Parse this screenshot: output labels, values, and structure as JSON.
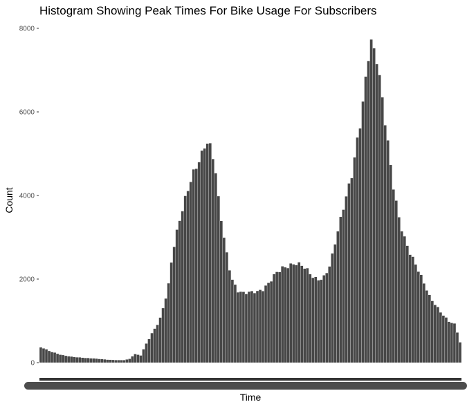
{
  "chart_data": {
    "type": "bar",
    "title": "Histogram Showing Peak Times For Bike Usage For Subscribers",
    "xlabel": "Time",
    "ylabel": "Count",
    "ylim": [
      0,
      8000
    ],
    "y_ticks": [
      0,
      2000,
      4000,
      6000,
      8000
    ],
    "y_tick_labels": [
      "0",
      "2000",
      "4000",
      "6000",
      "8000"
    ],
    "grid": false,
    "legend": "none",
    "x_tick_labels_legible": false,
    "bar_color": "#474747",
    "bar_outline_color": "#ffffff",
    "background_color": "#ffffff",
    "anchors": [
      [
        0.0,
        380
      ],
      [
        0.01,
        340
      ],
      [
        0.025,
        260
      ],
      [
        0.05,
        190
      ],
      [
        0.08,
        145
      ],
      [
        0.11,
        110
      ],
      [
        0.14,
        90
      ],
      [
        0.17,
        70
      ],
      [
        0.2,
        60
      ],
      [
        0.215,
        90
      ],
      [
        0.225,
        200
      ],
      [
        0.24,
        170
      ],
      [
        0.255,
        500
      ],
      [
        0.27,
        800
      ],
      [
        0.285,
        1050
      ],
      [
        0.298,
        1500
      ],
      [
        0.305,
        1750
      ],
      [
        0.315,
        2500
      ],
      [
        0.33,
        3200
      ],
      [
        0.345,
        3900
      ],
      [
        0.36,
        4600
      ],
      [
        0.375,
        5000
      ],
      [
        0.385,
        5100
      ],
      [
        0.395,
        5300
      ],
      [
        0.405,
        5000
      ],
      [
        0.415,
        4600
      ],
      [
        0.425,
        3700
      ],
      [
        0.44,
        2800
      ],
      [
        0.455,
        2100
      ],
      [
        0.47,
        1800
      ],
      [
        0.485,
        1700
      ],
      [
        0.5,
        1650
      ],
      [
        0.515,
        1620
      ],
      [
        0.53,
        1700
      ],
      [
        0.545,
        1950
      ],
      [
        0.56,
        2250
      ],
      [
        0.575,
        2350
      ],
      [
        0.59,
        2300
      ],
      [
        0.605,
        2280
      ],
      [
        0.62,
        2250
      ],
      [
        0.635,
        2200
      ],
      [
        0.65,
        2100
      ],
      [
        0.665,
        2080
      ],
      [
        0.675,
        2120
      ],
      [
        0.69,
        2350
      ],
      [
        0.7,
        2750
      ],
      [
        0.712,
        3200
      ],
      [
        0.725,
        3800
      ],
      [
        0.738,
        4400
      ],
      [
        0.75,
        5300
      ],
      [
        0.76,
        6000
      ],
      [
        0.768,
        6600
      ],
      [
        0.775,
        7100
      ],
      [
        0.78,
        7500
      ],
      [
        0.785,
        7700
      ],
      [
        0.792,
        7300
      ],
      [
        0.8,
        7000
      ],
      [
        0.81,
        6200
      ],
      [
        0.822,
        5400
      ],
      [
        0.835,
        4500
      ],
      [
        0.85,
        3700
      ],
      [
        0.865,
        3100
      ],
      [
        0.88,
        2600
      ],
      [
        0.895,
        2200
      ],
      [
        0.91,
        1850
      ],
      [
        0.925,
        1550
      ],
      [
        0.94,
        1400
      ],
      [
        0.955,
        1220
      ],
      [
        0.97,
        1020
      ],
      [
        0.985,
        900
      ],
      [
        1.0,
        350
      ]
    ]
  }
}
